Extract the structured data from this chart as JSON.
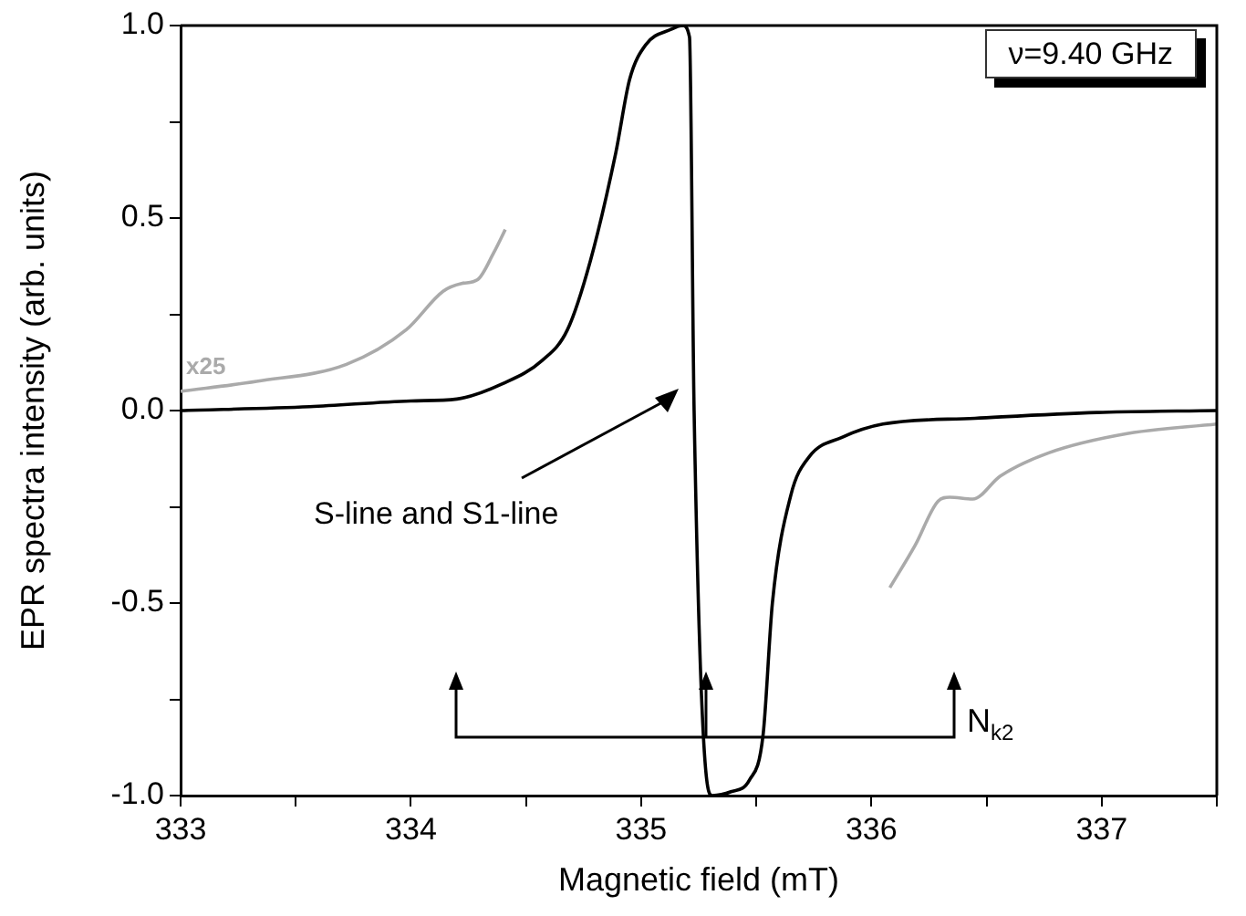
{
  "chart_data": {
    "type": "line",
    "xlabel": "Magnetic field (mT)",
    "ylabel": "EPR spectra intensity (arb. units)",
    "xlim": [
      333,
      337.5
    ],
    "ylim": [
      -1.0,
      1.0
    ],
    "xticks": [
      333,
      {
        "value": 333.5,
        "label": null
      },
      334,
      {
        "value": 334.5,
        "label": null
      },
      335,
      {
        "value": 335.5,
        "label": null
      },
      336,
      {
        "value": 336.5,
        "label": null
      },
      337,
      {
        "value": 337.5,
        "label": null
      }
    ],
    "yticks": [
      {
        "value": -1,
        "label": "-1.0"
      },
      {
        "value": -0.75,
        "label": null
      },
      {
        "value": -0.5,
        "label": "-0.5"
      },
      {
        "value": -0.25,
        "label": null
      },
      {
        "value": 0,
        "label": "0.0"
      },
      {
        "value": 0.25,
        "label": null
      },
      {
        "value": 0.5,
        "label": "0.5"
      },
      {
        "value": 0.75,
        "label": null
      },
      {
        "value": 1,
        "label": "1.0"
      }
    ],
    "grid": false,
    "legend": false,
    "marker": "none",
    "line_style": "solid",
    "series": [
      {
        "color": "#000000",
        "x": [
          333,
          333.56,
          334,
          334.2,
          334.4,
          334.57,
          334.68,
          334.78,
          334.89,
          334.95,
          335.02,
          335.13,
          335.18,
          335.21,
          335.23,
          335.29,
          335.31,
          335.39,
          335.47,
          335.53,
          335.57,
          335.65,
          335.73,
          335.87,
          336.05,
          336.45,
          336.98,
          337.5
        ],
        "values": [
          0,
          0.01,
          0.025,
          0.03,
          0.07,
          0.13,
          0.21,
          0.39,
          0.67,
          0.86,
          0.95,
          0.99,
          1.0,
          0.97,
          0,
          -0.98,
          -1.0,
          -0.99,
          -0.96,
          -0.84,
          -0.5,
          -0.22,
          -0.12,
          -0.07,
          -0.035,
          -0.02,
          -0.005,
          0
        ]
      },
      {
        "color": "#aaaaaa",
        "x": [
          333,
          333.33,
          333.72,
          333.98,
          334.14,
          334.22,
          334.29,
          334.36,
          334.41
        ],
        "values": [
          0.05,
          0.076,
          0.12,
          0.21,
          0.31,
          0.33,
          0.34,
          0.41,
          0.47
        ]
      },
      {
        "color": "#aaaaaa",
        "x": [
          336.08,
          336.19,
          336.29,
          336.34,
          336.44,
          336.56,
          336.77,
          337.11,
          337.5
        ],
        "values": [
          -0.46,
          -0.35,
          -0.235,
          -0.225,
          -0.23,
          -0.17,
          -0.11,
          -0.06,
          -0.035
        ]
      }
    ],
    "annotations": [
      "ν=9.40 GHz",
      "x25",
      "S-line and S1-line",
      "N$_{k2}$"
    ]
  }
}
